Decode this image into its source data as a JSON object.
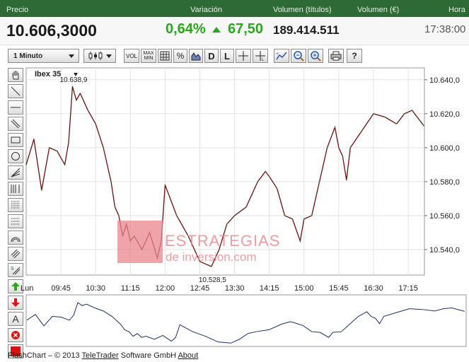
{
  "header": {
    "labels": {
      "price": "Precio",
      "variation": "Variación",
      "volume_titles": "Volumen (títulos)",
      "volume_eur": "Volumen (€)",
      "time": "Hora"
    },
    "values": {
      "price": "10.606,3000",
      "pct": "0,64%",
      "change": "67,50",
      "volume": "189.414.511",
      "time": "17:38:00"
    },
    "colors": {
      "up": "#2aa61f",
      "header_bg": "#2e6a35"
    }
  },
  "toolbar": {
    "interval": "1 Minuto",
    "buttons": [
      {
        "name": "chart-type-button",
        "icon": "candles-icon"
      },
      {
        "name": "volume-button",
        "label": "VOL"
      },
      {
        "name": "maxmin-button",
        "label": "MAX MIN"
      },
      {
        "name": "grid-button",
        "icon": "grid-icon"
      },
      {
        "name": "percent-button",
        "label": "%"
      },
      {
        "name": "compare-button",
        "icon": "area-chart-icon"
      },
      {
        "name": "daily-button",
        "label": "D"
      },
      {
        "name": "log-button",
        "label": "L"
      },
      {
        "name": "crosshair-button",
        "icon": "crosshair-icon"
      },
      {
        "name": "crosshair-l-button",
        "icon": "crosshair-icon"
      },
      {
        "name": "indicator-button",
        "icon": "indicator-icon"
      },
      {
        "name": "zoom-out-button",
        "icon": "zoom-out-icon"
      },
      {
        "name": "zoom-in-button",
        "icon": "zoom-in-icon"
      },
      {
        "name": "print-button",
        "icon": "print-icon"
      },
      {
        "name": "help-button",
        "label": "?"
      }
    ]
  },
  "tools": [
    "hand-icon",
    "line-icon",
    "horizontal-line-icon",
    "parallel-line-icon",
    "rectangle-icon",
    "circle-icon",
    "fan-icon",
    "fibonacci-icon",
    "grid-lines-icon",
    "dotted-grid-icon",
    "arc-icon",
    "channel-icon",
    "regression-icon",
    "buy-arrow-icon",
    "sell-arrow-icon",
    "text-icon",
    "delete-icon",
    "color-icon"
  ],
  "watermark": {
    "line1": "ESTRATEGIAS",
    "line2": "de inversion.com"
  },
  "footer": {
    "prefix": "FlashChart – © 2013",
    "company": "TeleTrader",
    "middle": "Software GmbH",
    "about": "About"
  },
  "chart_data": {
    "type": "line",
    "title": "Ibex 35",
    "x_ticks": [
      "Lun",
      "09:45",
      "10:30",
      "11:15",
      "12:00",
      "12:45",
      "13:30",
      "14:15",
      "15:00",
      "15:45",
      "16:30",
      "17:15"
    ],
    "y_ticks": [
      "10.540,0",
      "10.560,0",
      "10.580,0",
      "10.600,0",
      "10.620,0",
      "10.640,0"
    ],
    "ylim": [
      10525,
      10647
    ],
    "annotations": {
      "high": "10.638,9",
      "low": "10.528,5"
    },
    "x": [
      "09:00",
      "09:10",
      "09:20",
      "09:30",
      "09:40",
      "09:50",
      "09:55",
      "10:00",
      "10:05",
      "10:10",
      "10:20",
      "10:30",
      "10:40",
      "10:50",
      "10:55",
      "11:00",
      "11:05",
      "11:10",
      "11:15",
      "11:20",
      "11:30",
      "11:40",
      "11:50",
      "11:55",
      "12:00",
      "12:05",
      "12:15",
      "12:30",
      "12:45",
      "13:00",
      "13:10",
      "13:20",
      "13:30",
      "13:45",
      "14:00",
      "14:10",
      "14:15",
      "14:25",
      "14:35",
      "14:45",
      "14:55",
      "15:00",
      "15:10",
      "15:20",
      "15:30",
      "15:40",
      "15:45",
      "15:50",
      "15:55",
      "16:00",
      "16:15",
      "16:30",
      "16:45",
      "17:00",
      "17:10",
      "17:20",
      "17:30",
      "17:35"
    ],
    "values": [
      10590,
      10605,
      10575,
      10600,
      10598,
      10590,
      10603,
      10636,
      10628,
      10632,
      10622,
      10614,
      10600,
      10580,
      10565,
      10560,
      10548,
      10555,
      10545,
      10548,
      10540,
      10550,
      10535,
      10545,
      10578,
      10572,
      10560,
      10548,
      10533,
      10530,
      10540,
      10555,
      10560,
      10565,
      10580,
      10586,
      10583,
      10576,
      10560,
      10558,
      10545,
      10558,
      10560,
      10580,
      10600,
      10612,
      10600,
      10595,
      10581,
      10600,
      10610,
      10620,
      10618,
      10614,
      10620,
      10622,
      10616,
      10613
    ],
    "grid": true,
    "line_color": "#6a1010"
  }
}
